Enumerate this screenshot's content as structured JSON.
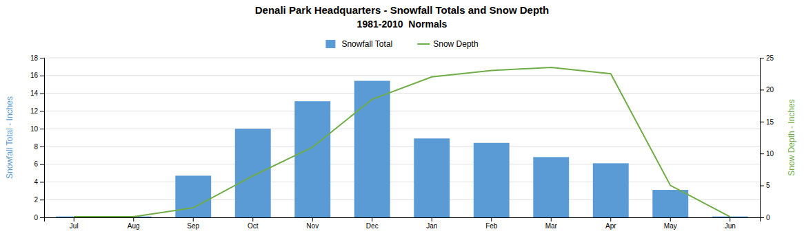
{
  "chart_data": {
    "type": "bar",
    "title": "Denali Park Headquarters - Snowfall Totals and Snow Depth",
    "subtitle": "1981-2010  Normals",
    "categories": [
      "Jul",
      "Aug",
      "Sep",
      "Oct",
      "Nov",
      "Dec",
      "Jan",
      "Feb",
      "Mar",
      "Apr",
      "May",
      "Jun"
    ],
    "series": [
      {
        "name": "Snowfall Total",
        "type": "bar",
        "color": "#5B9BD5",
        "values": [
          0.1,
          0.1,
          4.7,
          10.0,
          13.1,
          15.4,
          8.9,
          8.4,
          6.8,
          6.1,
          3.1,
          0.1
        ]
      },
      {
        "name": "Snow Depth",
        "type": "line",
        "axis": "y2",
        "color": "#70AD47",
        "values": [
          0.1,
          0.1,
          1.5,
          6.5,
          11.0,
          18.5,
          22.0,
          23.0,
          23.5,
          22.5,
          5.0,
          0.1
        ]
      }
    ],
    "ylabel": "Snowfall Total - Inches",
    "y2label": "Snow Depth - Inches",
    "ylim": [
      0,
      18
    ],
    "yticks": [
      0,
      2,
      4,
      6,
      8,
      10,
      12,
      14,
      16,
      18
    ],
    "y2lim": [
      0,
      25
    ],
    "y2ticks": [
      0,
      5,
      10,
      15,
      20,
      25
    ],
    "grid": true,
    "legend": "top"
  }
}
